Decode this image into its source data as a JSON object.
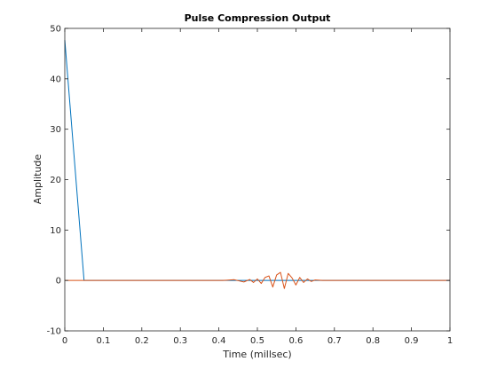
{
  "chart_data": {
    "type": "line",
    "title": "Pulse Compression Output",
    "xlabel": "Time (millsec)",
    "ylabel": "Amplitude",
    "xlim": [
      0,
      1
    ],
    "ylim": [
      -10,
      50
    ],
    "grid": false,
    "xticks": [
      0,
      0.1,
      0.2,
      0.3,
      0.4,
      0.5,
      0.6,
      0.7,
      0.8,
      0.9,
      1
    ],
    "xtick_labels": [
      "0",
      "0.1",
      "0.2",
      "0.3",
      "0.4",
      "0.5",
      "0.6",
      "0.7",
      "0.8",
      "0.9",
      "1"
    ],
    "yticks": [
      -10,
      0,
      10,
      20,
      30,
      40,
      50
    ],
    "ytick_labels": [
      "-10",
      "0",
      "10",
      "20",
      "30",
      "40",
      "50"
    ],
    "series": [
      {
        "color": "#0072BD",
        "x": [
          0,
          0.05,
          0.1,
          0.15,
          0.2,
          0.25,
          0.3,
          0.35,
          0.4,
          0.45,
          0.5,
          0.55,
          0.6,
          0.65,
          0.7,
          0.75,
          0.8,
          0.85,
          0.9,
          0.95,
          1
        ],
        "y": [
          47.7,
          0,
          0,
          0,
          0,
          0,
          0,
          0,
          0,
          0,
          0,
          0,
          0,
          0,
          0,
          0,
          0,
          0,
          0,
          0,
          0
        ]
      },
      {
        "color": "#D95319",
        "x": [
          0,
          0.41,
          0.44,
          0.465,
          0.48,
          0.49,
          0.5,
          0.51,
          0.52,
          0.53,
          0.54,
          0.55,
          0.56,
          0.57,
          0.58,
          0.59,
          0.6,
          0.61,
          0.62,
          0.63,
          0.64,
          0.65,
          0.67,
          0.7,
          1
        ],
        "y": [
          0,
          0,
          0.15,
          -0.3,
          0.2,
          -0.4,
          0.3,
          -0.6,
          0.6,
          0.9,
          -1.3,
          1.1,
          1.6,
          -1.6,
          1.4,
          0.5,
          -0.9,
          0.6,
          -0.4,
          0.3,
          -0.2,
          0.1,
          0,
          0,
          0
        ]
      }
    ]
  }
}
